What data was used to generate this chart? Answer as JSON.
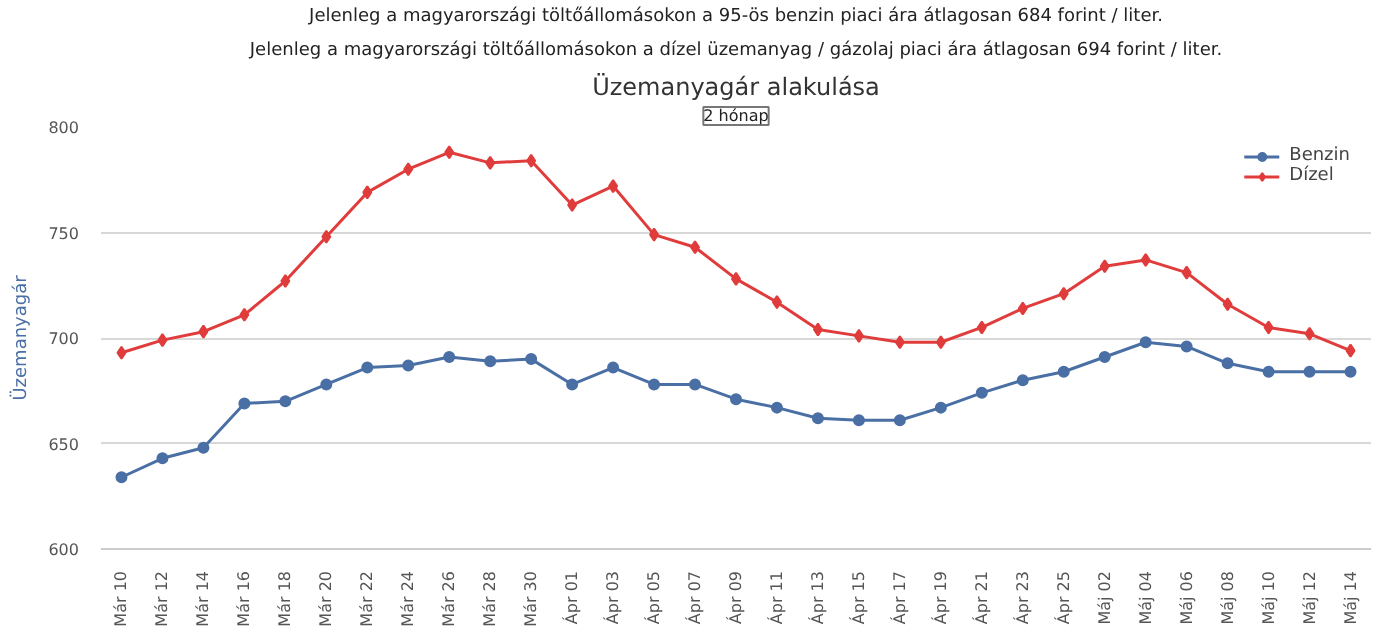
{
  "chart_data": {
    "type": "line",
    "subtitle": "Jelenleg a magyarországi töltőállomásokon a 95-ös benzin piaci ára átlagosan 684 forint / liter.",
    "annotations": [
      "Jelenleg a magyarországi töltőállomásokon a dízel üzemanyag / gázolaj piaci ára átlagosan 694 forint / liter.",
      "2 hónap"
    ],
    "title": "Üzemanyagár alakulása",
    "ylabel": "Üzemanyagár",
    "categories": [
      "Már 10",
      "Már 12",
      "Már 14",
      "Már 16",
      "Már 18",
      "Már 20",
      "Már 22",
      "Már 24",
      "Már 26",
      "Már 28",
      "Már 30",
      "Ápr 01",
      "Ápr 03",
      "Ápr 05",
      "Ápr 07",
      "Ápr 09",
      "Ápr 11",
      "Ápr 13",
      "Ápr 15",
      "Ápr 17",
      "Ápr 19",
      "Ápr 21",
      "Ápr 23",
      "Ápr 25",
      "Máj 02",
      "Máj 04",
      "Máj 06",
      "Máj 08",
      "Máj 10",
      "Máj 12",
      "Máj 14"
    ],
    "series": [
      {
        "name": "Benzin",
        "color": "#4a6fa5",
        "marker": "circle",
        "values": [
          634,
          643,
          648,
          669,
          670,
          678,
          686,
          687,
          691,
          689,
          690,
          678,
          686,
          678,
          678,
          671,
          667,
          662,
          661,
          661,
          667,
          674,
          680,
          684,
          691,
          698,
          696,
          688,
          684,
          684,
          684
        ]
      },
      {
        "name": "Dízel",
        "color": "#e03c3c",
        "marker": "diamond",
        "values": [
          693,
          699,
          703,
          711,
          727,
          748,
          769,
          780,
          788,
          783,
          784,
          763,
          772,
          749,
          743,
          728,
          717,
          704,
          701,
          698,
          698,
          705,
          714,
          721,
          734,
          737,
          731,
          716,
          705,
          702,
          694
        ]
      }
    ],
    "ylim": [
      600,
      800
    ],
    "yticks": [
      600,
      650,
      700,
      750,
      800
    ],
    "grid": "y",
    "legend": "top right"
  }
}
